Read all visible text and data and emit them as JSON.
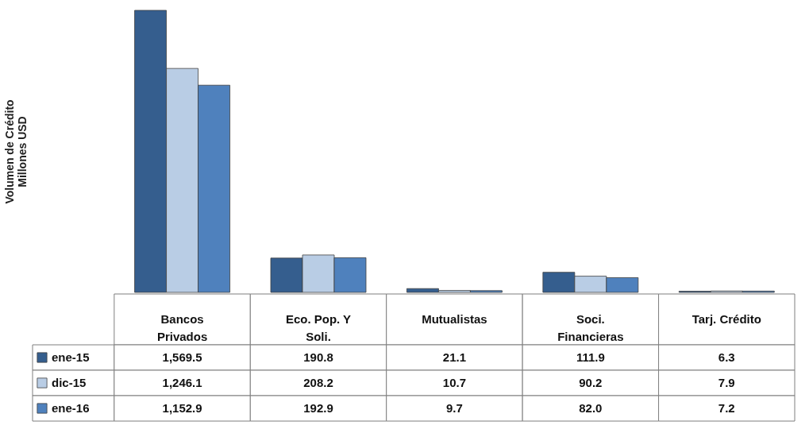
{
  "chart_data": {
    "type": "bar",
    "annotations": [
      "Volumen de Crédito Millones USD"
    ],
    "legend": "bottom left",
    "categories": [
      "Bancos Privados",
      "Eco. Pop. Y Soli.",
      "Mutualistas",
      "Soci. Financieras",
      "Tarj. Crédito"
    ],
    "series": [
      {
        "name": "ene-15",
        "color": "#355e8e",
        "values": [
          1569.5,
          190.8,
          21.1,
          111.9,
          6.3
        ],
        "value_labels": [
          "1,569.5",
          "190.8",
          "21.1",
          "111.9",
          "6.3"
        ]
      },
      {
        "name": "dic-15",
        "color": "#b9cde5",
        "values": [
          1246.1,
          208.2,
          10.7,
          90.2,
          7.9
        ],
        "value_labels": [
          "1,246.1",
          "208.2",
          "10.7",
          "90.2",
          "7.9"
        ]
      },
      {
        "name": "ene-16",
        "color": "#4f81bd",
        "values": [
          1152.9,
          192.9,
          9.7,
          82.0,
          7.2
        ],
        "value_labels": [
          "1,152.9",
          "192.9",
          "9.7",
          "82.0",
          "7.2"
        ]
      }
    ]
  }
}
